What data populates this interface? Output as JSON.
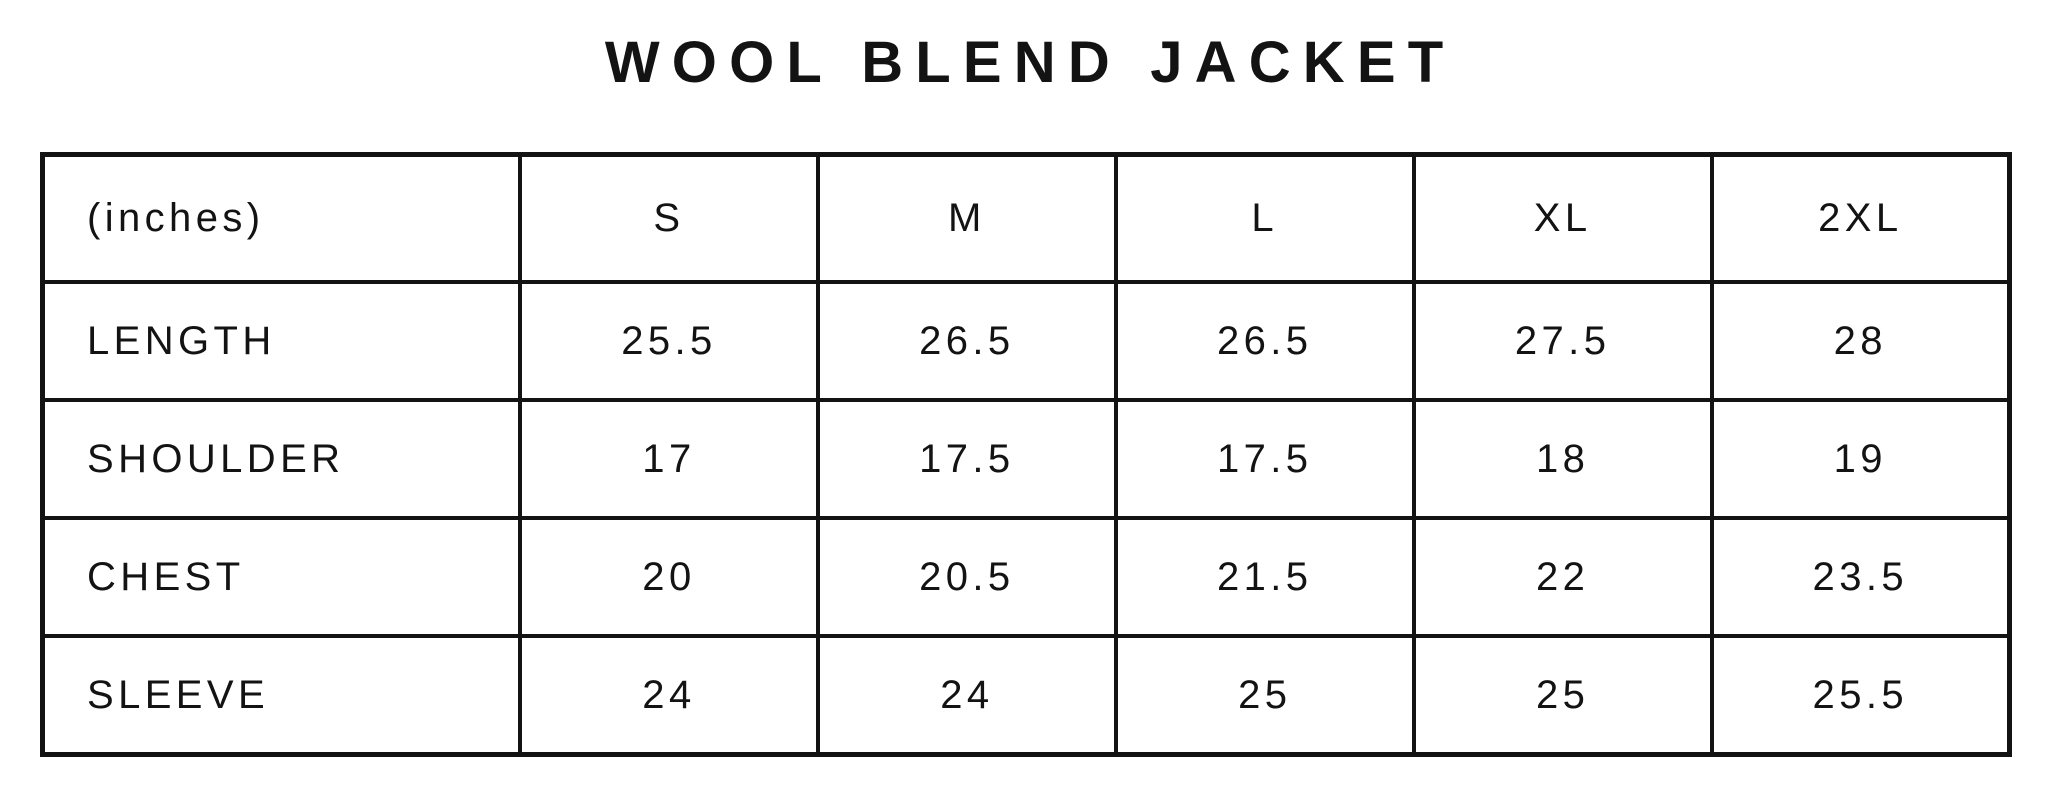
{
  "title": "WOOL BLEND JACKET",
  "colors": {
    "background": "#ffffff",
    "text": "#131313",
    "border": "#131313"
  },
  "chart_data": {
    "type": "table",
    "title": "WOOL BLEND JACKET",
    "unit_label": "(inches)",
    "columns": [
      "S",
      "M",
      "L",
      "XL",
      "2XL"
    ],
    "rows": [
      {
        "label": "LENGTH",
        "values": [
          "25.5",
          "26.5",
          "26.5",
          "27.5",
          "28"
        ]
      },
      {
        "label": "SHOULDER",
        "values": [
          "17",
          "17.5",
          "17.5",
          "18",
          "19"
        ]
      },
      {
        "label": "CHEST",
        "values": [
          "20",
          "20.5",
          "21.5",
          "22",
          "23.5"
        ]
      },
      {
        "label": "SLEEVE",
        "values": [
          "24",
          "24",
          "25",
          "25",
          "25.5"
        ]
      }
    ],
    "layout": {
      "grid": "full-borders",
      "header_position": "top",
      "label_column_position": "left"
    }
  }
}
